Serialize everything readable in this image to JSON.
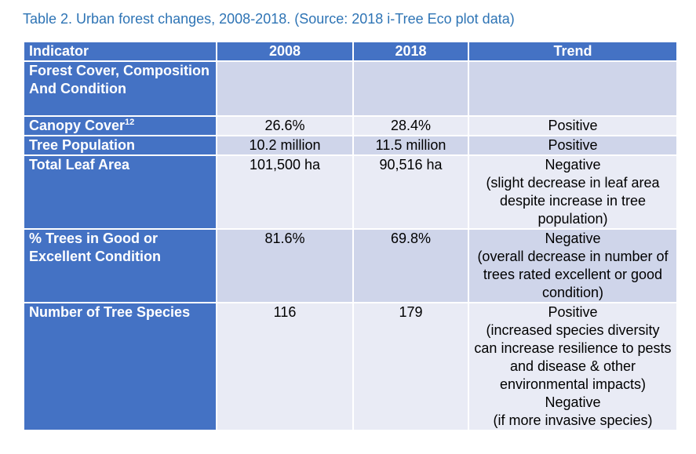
{
  "caption": "Table 2. Urban forest changes, 2008-2018. (Source: 2018 i-Tree Eco plot data)",
  "headers": {
    "indicator": "Indicator",
    "y2008": "2008",
    "y2018": "2018",
    "trend": "Trend"
  },
  "rows": [
    {
      "indicator": "Forest Cover, Composition And Condition",
      "v2008": "",
      "v2018": "",
      "trend": "",
      "trend_note": ""
    },
    {
      "indicator": "Canopy Cover",
      "sup": "12",
      "v2008": "26.6%",
      "v2018": "28.4%",
      "trend": "Positive",
      "trend_note": ""
    },
    {
      "indicator": "Tree Population",
      "v2008": "10.2 million",
      "v2018": "11.5 million",
      "trend": "Positive",
      "trend_note": ""
    },
    {
      "indicator": "Total Leaf Area",
      "v2008": "101,500 ha",
      "v2018": "90,516 ha",
      "trend": "Negative",
      "trend_note": "(slight decrease in leaf area despite increase in tree population)"
    },
    {
      "indicator": "% Trees in Good or Excellent Condition",
      "v2008": "81.6%",
      "v2018": "69.8%",
      "trend": "Negative",
      "trend_note": "(overall decrease in number of trees rated excellent or good condition)"
    },
    {
      "indicator": "Number of Tree Species",
      "v2008": "116",
      "v2018": "179",
      "trend": "Positive",
      "trend_note": "(increased species diversity can increase resilience to pests and disease & other environmental impacts)",
      "trend2": "Negative",
      "trend2_note": "(if more invasive species)"
    }
  ],
  "colors": {
    "caption": "#2e74b5",
    "header_bg": "#4472c4",
    "band_dark": "#cfd5ea",
    "band_light": "#e9ebf5"
  }
}
